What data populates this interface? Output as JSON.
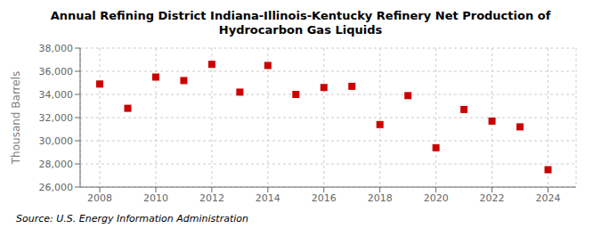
{
  "chart_data": {
    "type": "scatter",
    "title": "Annual Refining District Indiana-Illinois-Kentucky Refinery Net Production of Hydrocarbon Gas Liquids",
    "ylabel": "Thousand Barrels",
    "annotations": [
      "Source: U.S. Energy Information Administration"
    ],
    "x": [
      2008,
      2009,
      2010,
      2011,
      2012,
      2013,
      2014,
      2015,
      2016,
      2017,
      2018,
      2019,
      2020,
      2021,
      2022,
      2023,
      2024
    ],
    "values": [
      34900,
      32800,
      35500,
      35200,
      36600,
      34200,
      36500,
      34000,
      34600,
      34700,
      31400,
      33900,
      29400,
      32700,
      31700,
      31200,
      27500
    ],
    "color": "#cc0000",
    "marker": "square",
    "grid": true,
    "xlim": [
      2007.3,
      2025.0
    ],
    "xticks": [
      2008,
      2010,
      2012,
      2014,
      2016,
      2018,
      2020,
      2022,
      2024
    ],
    "ylim": [
      26000,
      38000
    ],
    "yticks": [
      {
        "value": 26000,
        "label": "26,000"
      },
      {
        "value": 28000,
        "label": "28,000"
      },
      {
        "value": 30000,
        "label": "30,000"
      },
      {
        "value": 32000,
        "label": "32,000"
      },
      {
        "value": 34000,
        "label": "34,000"
      },
      {
        "value": 36000,
        "label": "36,000"
      },
      {
        "value": 38000,
        "label": "38,000"
      }
    ]
  }
}
